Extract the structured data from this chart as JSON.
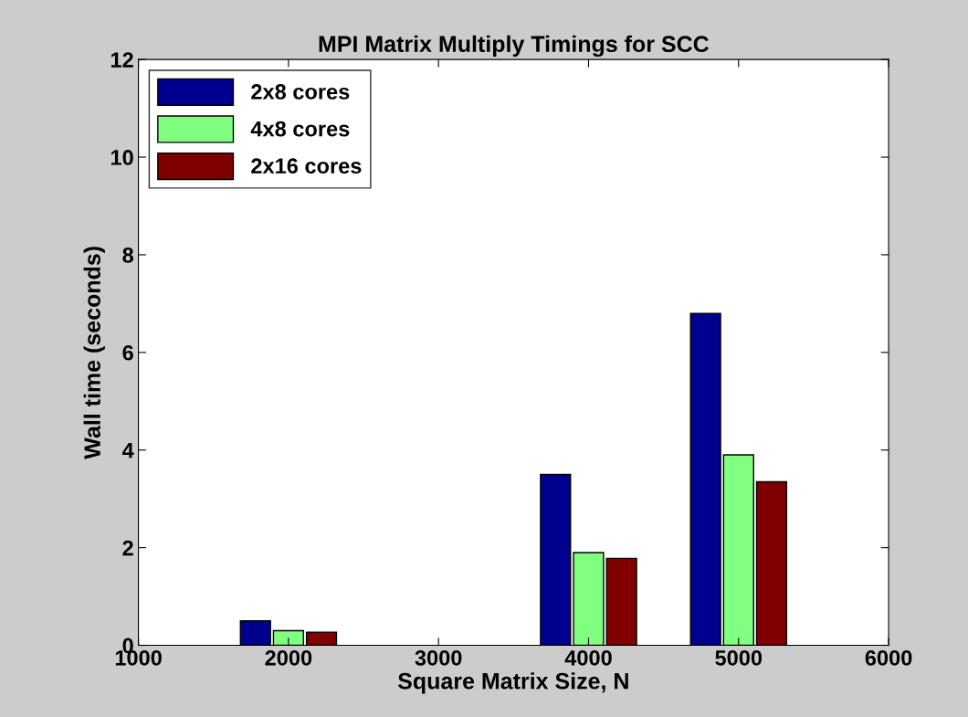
{
  "chart_data": {
    "type": "bar",
    "title": "MPI Matrix Multiply Timings for SCC",
    "xlabel": "Square Matrix Size, N",
    "ylabel": "Wall time (seconds)",
    "x": [
      2000,
      4000,
      5000
    ],
    "series": [
      {
        "name": "2x8 cores",
        "color": "#00008f",
        "values": [
          0.5,
          3.5,
          6.8
        ]
      },
      {
        "name": "4x8 cores",
        "color": "#80ff80",
        "values": [
          0.3,
          1.9,
          3.9
        ]
      },
      {
        "name": "2x16 cores",
        "color": "#800000",
        "values": [
          0.27,
          1.78,
          3.35
        ]
      }
    ],
    "xlim": [
      1000,
      6000
    ],
    "xticks": [
      1000,
      2000,
      3000,
      4000,
      5000,
      6000
    ],
    "ylim": [
      0,
      12
    ],
    "yticks": [
      0,
      2,
      4,
      6,
      8,
      10,
      12
    ],
    "grid": false,
    "legend": "top left"
  }
}
